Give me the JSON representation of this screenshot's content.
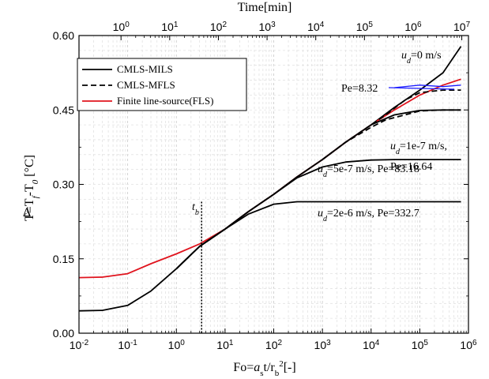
{
  "chart_data": {
    "type": "line",
    "x_scale": "log",
    "xlabel": "Fo=a_s t/r_b^2[-]",
    "xlabel_parts": {
      "a": "Fo=",
      "b": "a",
      "c": "s",
      "d": "t/r",
      "e": "b",
      "f": "2",
      "g": "[-]"
    },
    "top_xlabel": "Time[min]",
    "ylabel_parts": {
      "delta": "Δ",
      "t": "T=T",
      "f": "f",
      "dash": "-T",
      "zero": "0",
      "unit": " [°C]"
    },
    "xlim": [
      0.01,
      1000000
    ],
    "ylim": [
      0,
      0.6
    ],
    "x_ticks": [
      "10-2",
      "10-1",
      "100",
      "101",
      "102",
      "103",
      "104",
      "105",
      "106"
    ],
    "x_tick_parts": [
      {
        "base": "10",
        "exp": "-2"
      },
      {
        "base": "10",
        "exp": "-1"
      },
      {
        "base": "10",
        "exp": "0"
      },
      {
        "base": "10",
        "exp": "1"
      },
      {
        "base": "10",
        "exp": "2"
      },
      {
        "base": "10",
        "exp": "3"
      },
      {
        "base": "10",
        "exp": "4"
      },
      {
        "base": "10",
        "exp": "5"
      },
      {
        "base": "10",
        "exp": "6"
      }
    ],
    "top_x_ticks": [
      {
        "base": "10",
        "exp": "0",
        "fo": 0.073
      },
      {
        "base": "10",
        "exp": "1",
        "fo": 0.73
      },
      {
        "base": "10",
        "exp": "2",
        "fo": 7.3
      },
      {
        "base": "10",
        "exp": "3",
        "fo": 73
      },
      {
        "base": "10",
        "exp": "4",
        "fo": 730
      },
      {
        "base": "10",
        "exp": "5",
        "fo": 7300
      },
      {
        "base": "10",
        "exp": "6",
        "fo": 73000
      },
      {
        "base": "10",
        "exp": "7",
        "fo": 730000
      }
    ],
    "y_ticks": [
      0.0,
      0.15,
      0.3,
      0.45,
      0.6
    ],
    "y_tick_labels": [
      "0.00",
      "0.15",
      "0.30",
      "0.45",
      "0.60"
    ],
    "grid": true,
    "legend_position": "top-left",
    "series": [
      {
        "name": "CMLS-MILS",
        "style": "solid",
        "color": "#000000",
        "x": [
          0.01,
          0.03,
          0.1,
          0.3,
          1,
          3,
          10,
          30,
          100,
          300,
          1000,
          3000,
          10000,
          30000,
          100000,
          300000,
          700000
        ],
        "y": [
          0.045,
          0.046,
          0.056,
          0.085,
          0.13,
          0.175,
          0.21,
          0.245,
          0.28,
          0.315,
          0.35,
          0.385,
          0.42,
          0.455,
          0.49,
          0.525,
          0.578
        ]
      },
      {
        "name": "CMLS-MFLS",
        "style": "dashed",
        "color": "#000000",
        "x": [
          1000,
          3000,
          10000,
          20000,
          50000,
          100000,
          300000,
          700000
        ],
        "y": [
          0.35,
          0.385,
          0.415,
          0.43,
          0.44,
          0.448,
          0.45,
          0.45
        ]
      },
      {
        "name": "Finite line-source(FLS)",
        "style": "solid",
        "color": "#e0141e",
        "x": [
          0.01,
          0.03,
          0.1,
          0.3,
          1,
          3,
          10,
          30,
          100,
          300,
          1000,
          3000,
          10000,
          30000,
          100000,
          300000,
          700000
        ],
        "y": [
          0.112,
          0.113,
          0.12,
          0.14,
          0.16,
          0.18,
          0.21,
          0.245,
          0.28,
          0.315,
          0.35,
          0.385,
          0.42,
          0.45,
          0.48,
          0.5,
          0.512
        ]
      },
      {
        "style": "solid",
        "color": "#000000",
        "x": [
          1,
          3,
          10,
          30,
          100,
          300,
          1000,
          3000,
          10000,
          30000,
          100000,
          300000,
          700000
        ],
        "y": [
          0.13,
          0.175,
          0.21,
          0.245,
          0.28,
          0.315,
          0.35,
          0.385,
          0.42,
          0.44,
          0.449,
          0.45,
          0.45
        ]
      },
      {
        "style": "solid",
        "color": "#000000",
        "x": [
          1,
          3,
          10,
          30,
          100,
          300,
          1000,
          3000,
          10000,
          30000,
          100000,
          300000,
          700000
        ],
        "y": [
          0.13,
          0.175,
          0.21,
          0.245,
          0.28,
          0.313,
          0.335,
          0.345,
          0.349,
          0.35,
          0.35,
          0.35,
          0.35
        ]
      },
      {
        "style": "solid",
        "color": "#000000",
        "x": [
          1,
          3,
          10,
          30,
          100,
          300,
          1000,
          3000,
          10000,
          30000,
          100000,
          300000,
          700000
        ],
        "y": [
          0.13,
          0.175,
          0.21,
          0.24,
          0.26,
          0.265,
          0.265,
          0.265,
          0.265,
          0.265,
          0.265,
          0.265,
          0.265
        ]
      },
      {
        "style": "dashed",
        "color": "#000000",
        "x": [
          1000,
          3000,
          10000,
          20000,
          50000,
          100000,
          300000,
          700000
        ],
        "y": [
          0.35,
          0.385,
          0.42,
          0.44,
          0.47,
          0.485,
          0.49,
          0.49
        ]
      },
      {
        "style": "solid",
        "color": "#1a1aff",
        "x": [
          30000,
          100000,
          300000,
          700000
        ],
        "y": [
          0.495,
          0.5,
          0.497,
          0.5
        ]
      }
    ],
    "vline": {
      "x": 3.3,
      "y_top": 0.265,
      "label_main": "t",
      "label_sub": "b"
    },
    "annotations": {
      "u0": {
        "u": "u",
        "sub": "d",
        "rest": "=0 m/s"
      },
      "pe832": {
        "text": "Pe=8.32"
      },
      "u1e7": {
        "u": "u",
        "sub": "d",
        "rest": "=1e-7 m/s,",
        "line2": "Pe=16.64"
      },
      "u5e7": {
        "u": "u",
        "sub": "d",
        "rest": "=5e-7 m/s, Pe=83.18"
      },
      "u2e6": {
        "u": "u",
        "sub": "d",
        "rest": "=2e-6 m/s, Pe=332.7"
      }
    }
  }
}
